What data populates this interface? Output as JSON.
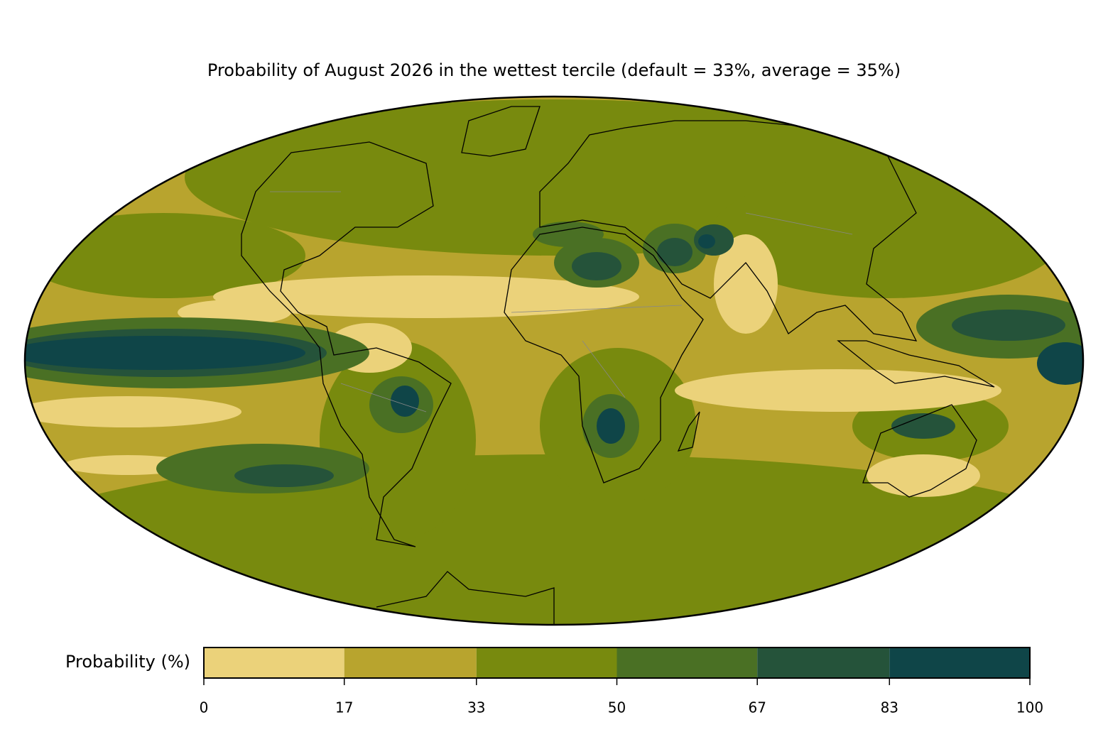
{
  "title": "Probability of August 2026 in the wettest tercile (default = 33%, average = 35%)",
  "colorbar": {
    "label": "Probability (%)",
    "bounds": [
      0,
      17,
      33,
      50,
      67,
      83,
      100
    ],
    "colors": [
      "#ebd27a",
      "#b8a42e",
      "#788a0e",
      "#4a7024",
      "#25533a",
      "#0f4548"
    ]
  }
}
